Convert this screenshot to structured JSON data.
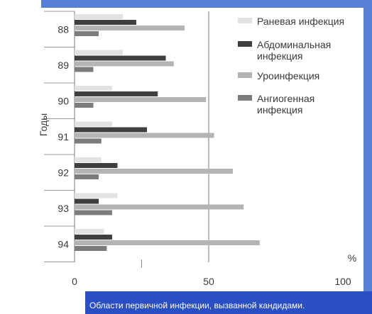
{
  "caption": "Области первичной инфекции, вызванной кандидами.",
  "colors": {
    "top_band": "#5a7fd6",
    "caption_bar": "#2a4ec4",
    "series": [
      "#e2e2e2",
      "#3f3f3f",
      "#b4b4b4",
      "#7c7c7c"
    ]
  },
  "chart_data": {
    "type": "bar",
    "orientation": "horizontal",
    "ylabel": "Годы",
    "xunit": "%",
    "xlim": [
      0,
      100
    ],
    "xticks": [
      0,
      50,
      100
    ],
    "categories": [
      "88",
      "89",
      "90",
      "91",
      "92",
      "93",
      "94"
    ],
    "legend_position": "top-right",
    "series": [
      {
        "name": "Раневая инфекция",
        "values": [
          18,
          18,
          14,
          14,
          10,
          16,
          11
        ]
      },
      {
        "name": "Абдоминальная инфекция",
        "values": [
          23,
          34,
          31,
          27,
          16,
          9,
          14
        ]
      },
      {
        "name": "Уроинфекция",
        "values": [
          41,
          37,
          49,
          52,
          59,
          63,
          69
        ]
      },
      {
        "name": "Ангиогенная инфекция",
        "values": [
          9,
          7,
          7,
          10,
          9,
          14,
          12
        ]
      }
    ]
  }
}
